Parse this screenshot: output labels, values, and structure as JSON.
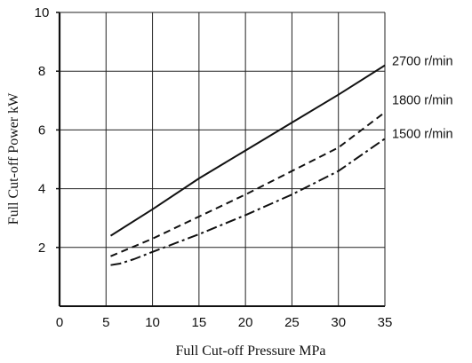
{
  "chart_data": {
    "type": "line",
    "xlabel": "Full Cut-off  Pressure  MPa",
    "ylabel": "Full Cut-off Power  kW",
    "xlim": [
      0,
      35
    ],
    "ylim": [
      0,
      10
    ],
    "xticks": [
      0,
      5,
      10,
      15,
      20,
      25,
      30,
      35
    ],
    "yticks": [
      2,
      4,
      6,
      8,
      10
    ],
    "grid": true,
    "legend": "inline-right",
    "series": [
      {
        "name": "2700 r/min",
        "style": "solid",
        "x": [
          5.5,
          10,
          15,
          20,
          25,
          30,
          35
        ],
        "y": [
          2.4,
          3.3,
          4.35,
          5.3,
          6.25,
          7.2,
          8.2
        ]
      },
      {
        "name": "1800 r/min",
        "style": "dashed",
        "x": [
          5.5,
          10,
          15,
          20,
          25,
          30,
          35
        ],
        "y": [
          1.7,
          2.3,
          3.05,
          3.8,
          4.6,
          5.4,
          6.6
        ]
      },
      {
        "name": "1500 r/min",
        "style": "dash-dot",
        "x": [
          5.5,
          6.5,
          8,
          10,
          15,
          20,
          25,
          30,
          35
        ],
        "y": [
          1.4,
          1.45,
          1.6,
          1.85,
          2.45,
          3.1,
          3.8,
          4.6,
          5.7
        ]
      }
    ]
  }
}
